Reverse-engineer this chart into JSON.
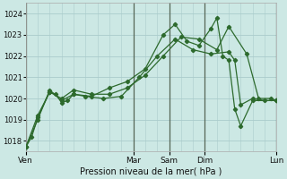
{
  "background_color": "#cce8e4",
  "grid_color": "#aacccc",
  "line_color": "#2d6a2d",
  "marker_color": "#2d6a2d",
  "xlabel": "Pression niveau de la mer( hPa )",
  "ylim": [
    1017.5,
    1024.5
  ],
  "yticks": [
    1018,
    1019,
    1020,
    1021,
    1022,
    1023,
    1024
  ],
  "xlim": [
    0,
    168
  ],
  "day_positions": [
    0,
    72,
    96,
    120,
    168
  ],
  "day_labels": [
    "Ven",
    "Mar",
    "Sam",
    "Dim",
    "Lun"
  ],
  "series1_x": [
    0,
    4,
    8,
    16,
    20,
    24,
    28,
    32,
    40,
    52,
    64,
    76,
    88,
    100,
    112,
    124,
    136,
    140,
    144,
    152,
    160,
    168
  ],
  "series1_y": [
    1017.7,
    1018.2,
    1019.1,
    1020.3,
    1020.2,
    1019.8,
    1019.9,
    1020.2,
    1020.1,
    1020.0,
    1020.1,
    1021.0,
    1022.0,
    1022.8,
    1022.3,
    1022.1,
    1022.2,
    1021.8,
    1019.7,
    1020.0,
    1019.9,
    1019.9
  ],
  "series2_x": [
    0,
    8,
    16,
    24,
    32,
    44,
    56,
    68,
    80,
    92,
    104,
    116,
    128,
    136,
    148,
    156,
    164,
    168
  ],
  "series2_y": [
    1017.7,
    1019.2,
    1020.3,
    1020.0,
    1020.4,
    1020.2,
    1020.2,
    1020.5,
    1021.1,
    1022.0,
    1022.9,
    1022.8,
    1022.3,
    1023.4,
    1022.1,
    1020.0,
    1020.0,
    1019.9
  ],
  "series3_x": [
    0,
    8,
    16,
    24,
    32,
    44,
    56,
    68,
    80,
    92,
    100,
    108,
    116,
    124,
    128,
    132,
    136,
    140,
    144,
    152,
    168
  ],
  "series3_y": [
    1017.7,
    1019.0,
    1020.4,
    1019.9,
    1020.2,
    1020.1,
    1020.5,
    1020.8,
    1021.4,
    1023.0,
    1023.5,
    1022.7,
    1022.5,
    1023.3,
    1023.8,
    1022.0,
    1021.8,
    1019.5,
    1018.7,
    1019.9,
    1019.9
  ]
}
